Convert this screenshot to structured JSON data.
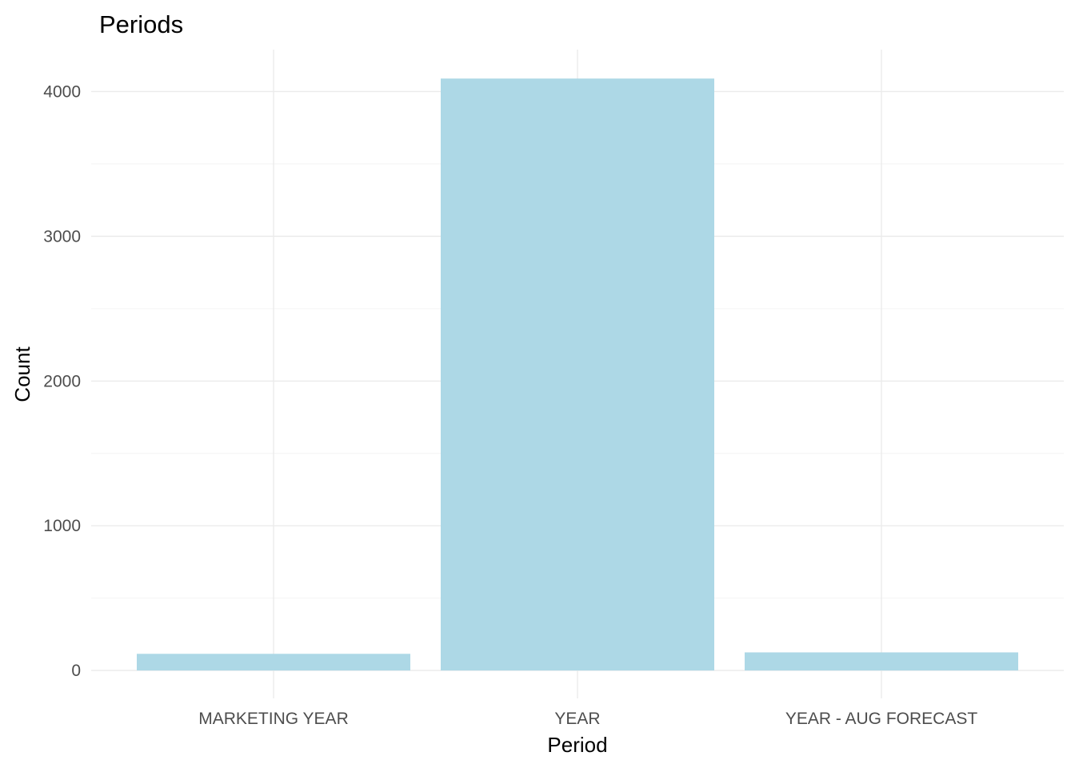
{
  "chart_data": {
    "type": "bar",
    "title": "Periods",
    "xlabel": "Period",
    "ylabel": "Count",
    "categories": [
      "MARKETING YEAR",
      "YEAR",
      "YEAR - AUG FORECAST"
    ],
    "values": [
      115,
      4090,
      125
    ],
    "ylim": [
      -193,
      4290
    ],
    "yticks": [
      0,
      1000,
      2000,
      3000,
      4000
    ],
    "ytick_labels": [
      "0",
      "1000",
      "2000",
      "3000",
      "4000"
    ],
    "grid": true,
    "legend": "none",
    "bar_color": "#add8e6"
  }
}
